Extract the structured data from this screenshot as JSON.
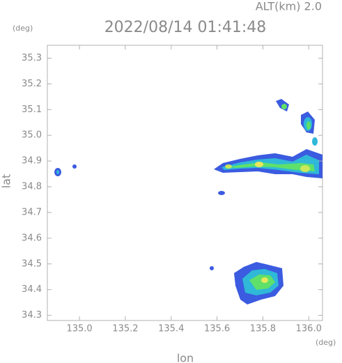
{
  "chart_data": {
    "type": "map",
    "title": "2022/08/14 01:41:48",
    "subtitle": "ALT(km) 2.0",
    "x_label": "lon",
    "y_label": "lat",
    "x_unit": "(deg)",
    "y_unit": "(deg)",
    "xlim": [
      134.86,
      136.06
    ],
    "ylim": [
      34.28,
      35.35
    ],
    "xticks": [
      {
        "value": 135,
        "label": "135.0"
      },
      135.2,
      135.4,
      135.6,
      135.8,
      {
        "value": 136,
        "label": "136.0"
      }
    ],
    "yticks": [
      34.3,
      34.4,
      34.5,
      34.6,
      34.7,
      34.8,
      34.9,
      {
        "value": 35,
        "label": "35.0"
      },
      35.1,
      35.2,
      35.3
    ]
  }
}
